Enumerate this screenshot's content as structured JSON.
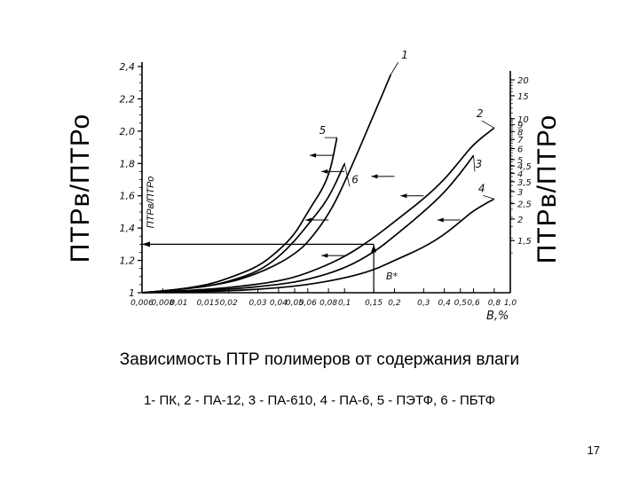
{
  "chart_data": {
    "type": "line",
    "xlabel": "В,%",
    "ylabel": "ПТРв/ПТРо",
    "ylabel_inner": "ПТРв/ПТРо",
    "ylabel_right": "ПТРв/ПТРо",
    "x_ticks": [
      "0,006",
      "0,008",
      "0,01",
      "0,015",
      "0,02",
      "0,03",
      "0,04",
      "0,05",
      "0,06",
      "0,08",
      "0,1",
      "0,15",
      "0,2",
      "0,3",
      "0,4",
      "0,5",
      "0,6",
      "0,8",
      "1,0"
    ],
    "y_ticks": [
      "1",
      "1,2",
      "1,4",
      "1,6",
      "1,8",
      "2,0",
      "2,2",
      "2,4"
    ],
    "y_right_ticks": [
      "1,5",
      "2",
      "2,5",
      "3",
      "3,5",
      "4",
      "4,5",
      "5",
      "6",
      "7",
      "8",
      "9",
      "10",
      "15",
      "20"
    ],
    "ylim": [
      1,
      2.4
    ],
    "series": [
      {
        "name": "1",
        "points": [
          [
            0.006,
            1.0
          ],
          [
            0.01,
            1.02
          ],
          [
            0.02,
            1.06
          ],
          [
            0.03,
            1.12
          ],
          [
            0.04,
            1.18
          ],
          [
            0.05,
            1.24
          ],
          [
            0.06,
            1.31
          ],
          [
            0.08,
            1.48
          ],
          [
            0.1,
            1.68
          ],
          [
            0.15,
            2.1
          ],
          [
            0.19,
            2.35
          ]
        ]
      },
      {
        "name": "2",
        "points": [
          [
            0.006,
            1.0
          ],
          [
            0.01,
            1.01
          ],
          [
            0.02,
            1.03
          ],
          [
            0.04,
            1.07
          ],
          [
            0.06,
            1.12
          ],
          [
            0.1,
            1.22
          ],
          [
            0.15,
            1.34
          ],
          [
            0.2,
            1.44
          ],
          [
            0.3,
            1.58
          ],
          [
            0.4,
            1.7
          ],
          [
            0.5,
            1.82
          ],
          [
            0.6,
            1.92
          ],
          [
            0.8,
            2.02
          ]
        ]
      },
      {
        "name": "3",
        "points": [
          [
            0.006,
            1.0
          ],
          [
            0.01,
            1.01
          ],
          [
            0.02,
            1.02
          ],
          [
            0.04,
            1.05
          ],
          [
            0.06,
            1.08
          ],
          [
            0.1,
            1.15
          ],
          [
            0.15,
            1.25
          ],
          [
            0.2,
            1.35
          ],
          [
            0.3,
            1.5
          ],
          [
            0.4,
            1.62
          ],
          [
            0.5,
            1.74
          ],
          [
            0.6,
            1.85
          ]
        ]
      },
      {
        "name": "4",
        "points": [
          [
            0.006,
            1.0
          ],
          [
            0.02,
            1.01
          ],
          [
            0.04,
            1.03
          ],
          [
            0.06,
            1.05
          ],
          [
            0.1,
            1.09
          ],
          [
            0.15,
            1.14
          ],
          [
            0.2,
            1.2
          ],
          [
            0.3,
            1.28
          ],
          [
            0.4,
            1.36
          ],
          [
            0.5,
            1.44
          ],
          [
            0.6,
            1.51
          ],
          [
            0.8,
            1.58
          ]
        ]
      },
      {
        "name": "5",
        "points": [
          [
            0.006,
            1.0
          ],
          [
            0.01,
            1.02
          ],
          [
            0.015,
            1.05
          ],
          [
            0.02,
            1.09
          ],
          [
            0.03,
            1.16
          ],
          [
            0.04,
            1.26
          ],
          [
            0.05,
            1.36
          ],
          [
            0.06,
            1.5
          ],
          [
            0.08,
            1.7
          ],
          [
            0.09,
            1.96
          ]
        ]
      },
      {
        "name": "6",
        "points": [
          [
            0.006,
            1.0
          ],
          [
            0.01,
            1.02
          ],
          [
            0.015,
            1.04
          ],
          [
            0.02,
            1.07
          ],
          [
            0.03,
            1.13
          ],
          [
            0.04,
            1.22
          ],
          [
            0.05,
            1.32
          ],
          [
            0.06,
            1.42
          ],
          [
            0.08,
            1.58
          ],
          [
            0.1,
            1.8
          ]
        ]
      }
    ],
    "annotations": [
      "В*"
    ]
  },
  "caption": "Зависимость ПТР  полимеров от содержания влаги",
  "legend_text": "1- ПК,  2 - ПА-12,  3 - ПА-610, 4 - ПА-6,  5 - ПЭТФ, 6 - ПБТФ",
  "page_number": "17"
}
